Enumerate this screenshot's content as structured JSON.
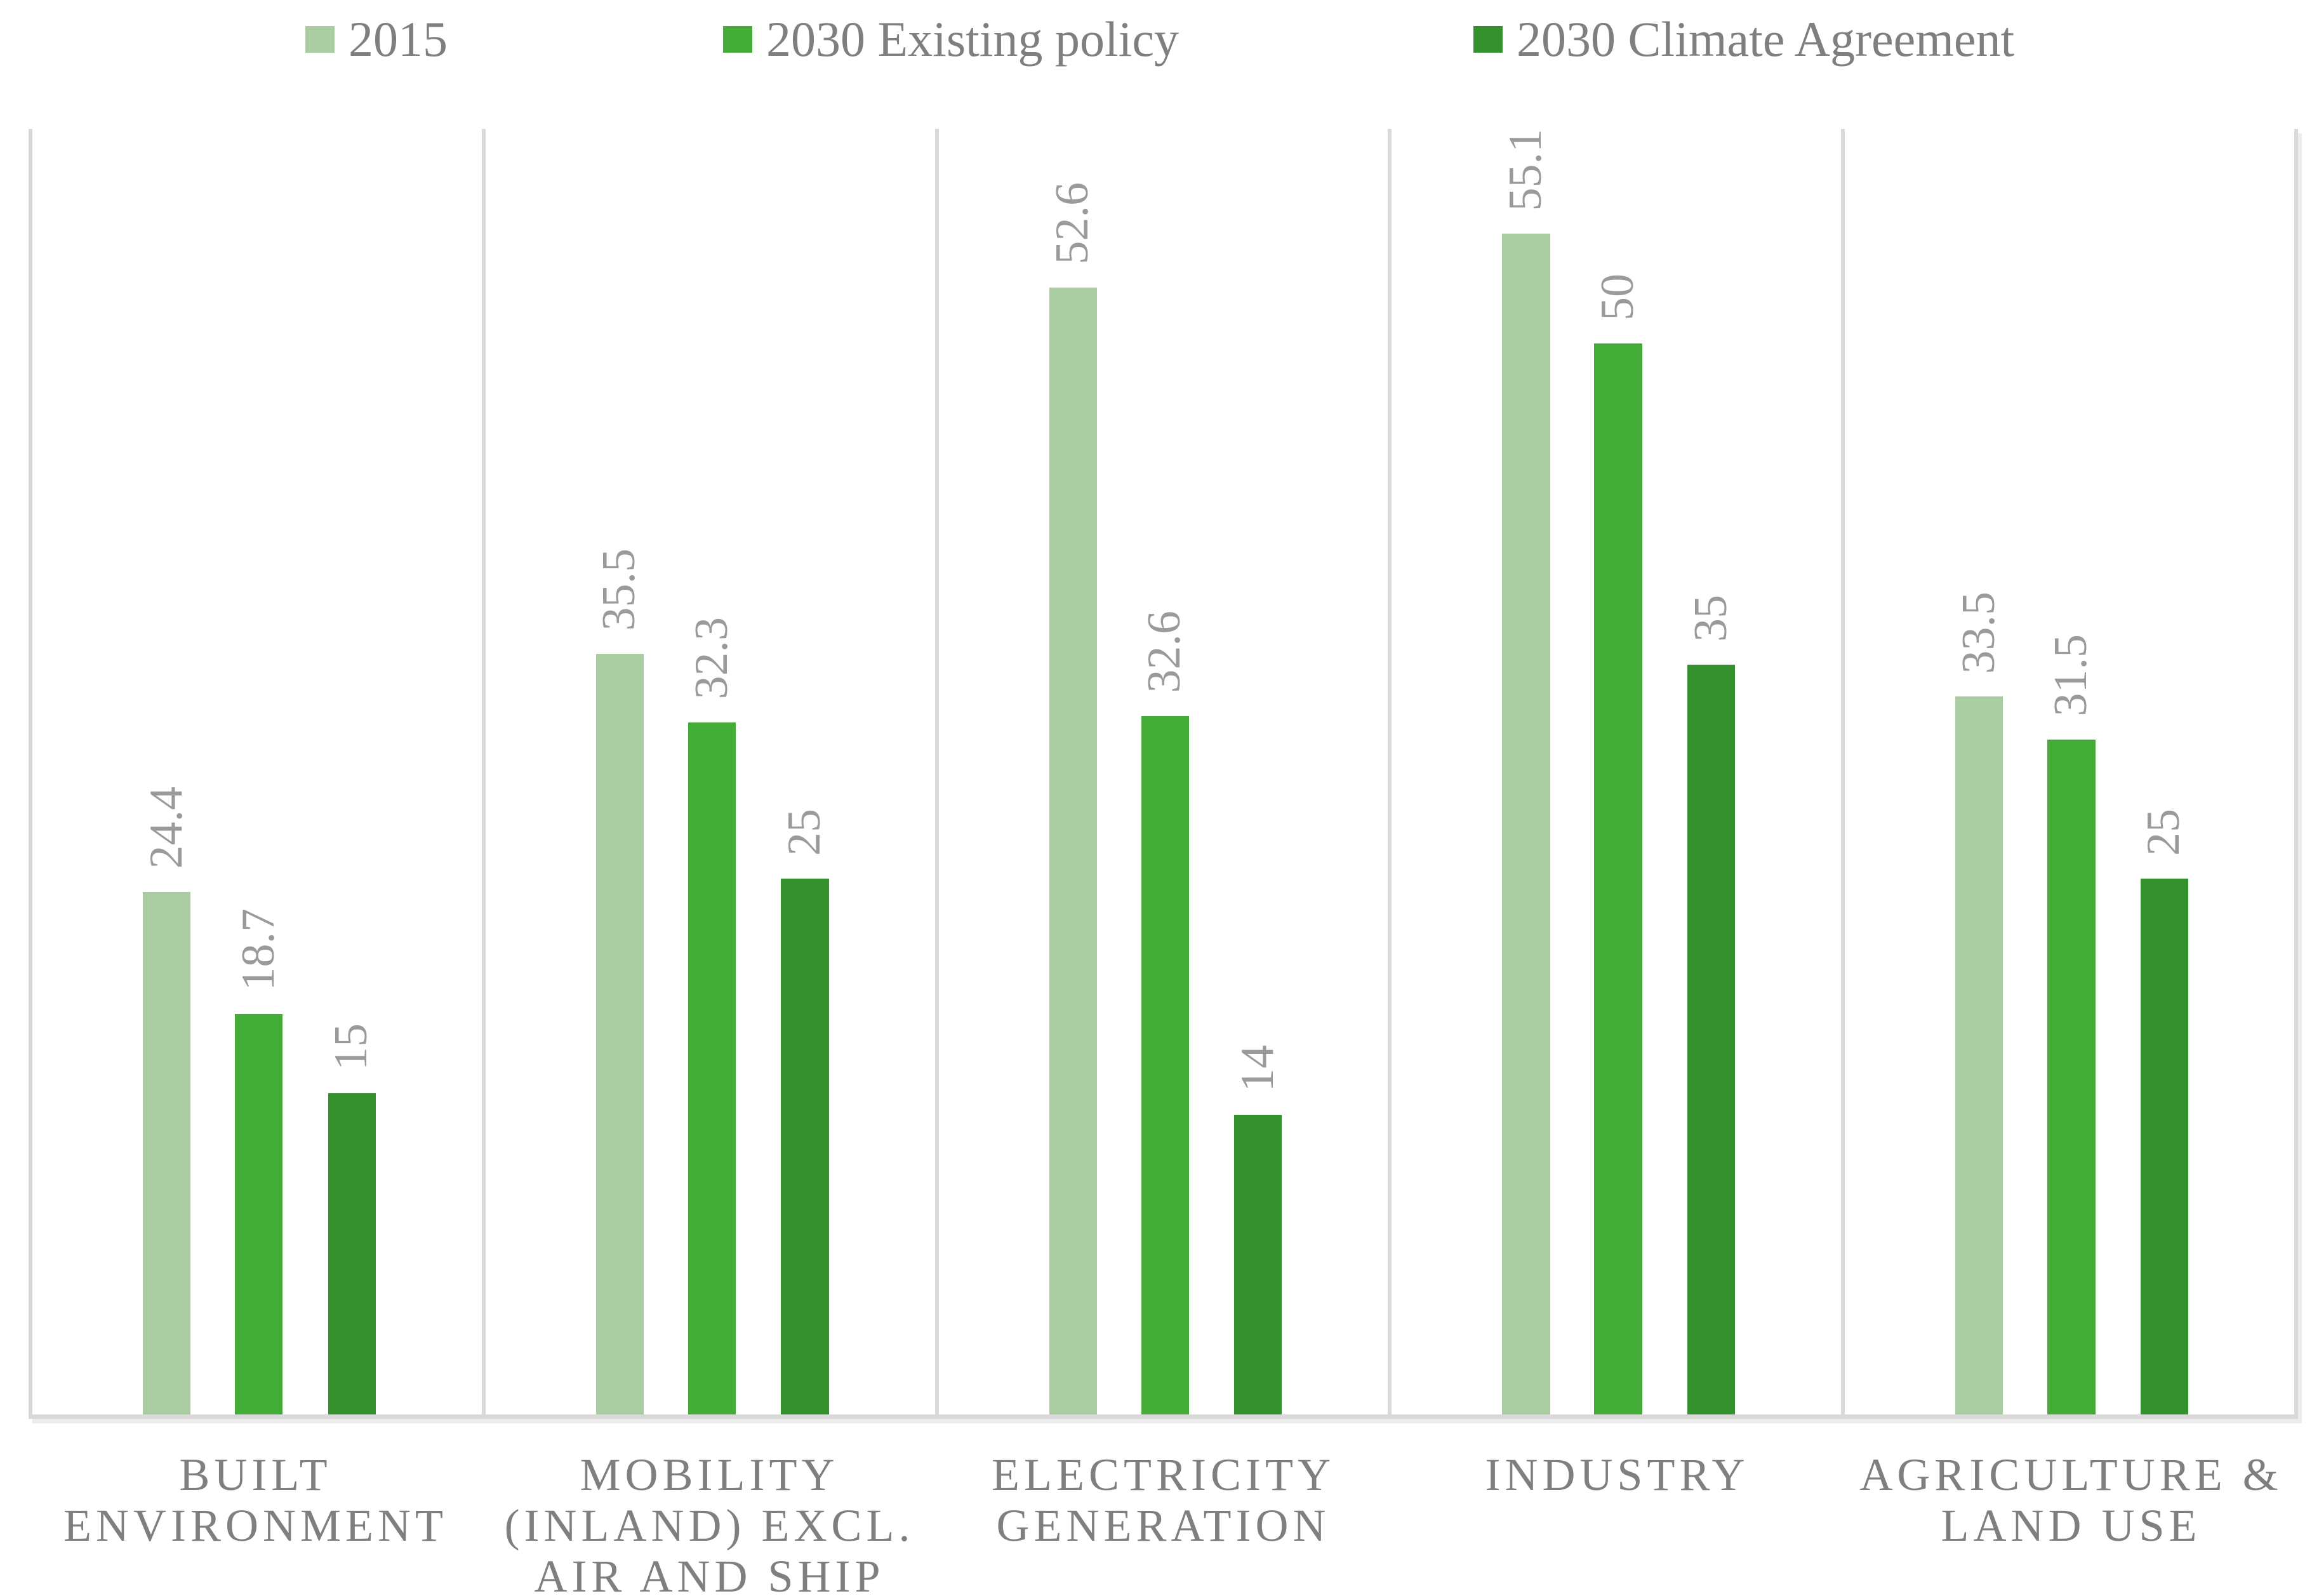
{
  "chart_data": {
    "type": "bar",
    "title": "",
    "xlabel": "",
    "ylabel": "",
    "ylim": [
      0,
      60
    ],
    "grid": "none",
    "legend_position": "top",
    "data_label_style": "rotated 90deg, above bars",
    "categories": [
      "BUILT ENVIRONMENT",
      "MOBILITY (INLAND) EXCL. AIR AND SHIP",
      "ELECTRICITY GENERATION",
      "INDUSTRY",
      "AGRICULTURE & LAND USE"
    ],
    "category_lines": [
      [
        "BUILT",
        "ENVIRONMENT"
      ],
      [
        "MOBILITY",
        "(INLAND) EXCL.",
        "AIR AND SHIP"
      ],
      [
        "ELECTRICITY",
        "GENERATION"
      ],
      [
        "INDUSTRY"
      ],
      [
        "AGRICULTURE &",
        "LAND USE"
      ]
    ],
    "series": [
      {
        "name": "2015",
        "color": "#a9cda1",
        "values": [
          24.4,
          35.5,
          52.6,
          55.1,
          33.5
        ]
      },
      {
        "name": "2030 Existing policy",
        "color": "#43ad38",
        "values": [
          18.7,
          32.3,
          32.6,
          50,
          31.5
        ]
      },
      {
        "name": "2030 Climate Agreement",
        "color": "#35912d",
        "values": [
          15,
          25,
          14,
          35,
          25
        ]
      }
    ]
  },
  "colors": {
    "background": "#ffffff",
    "axis_line": "#d9d9d9",
    "value_label_text": "#9a9a9a",
    "category_text": "#7f7f7f",
    "legend_text": "#7f7f7f"
  }
}
